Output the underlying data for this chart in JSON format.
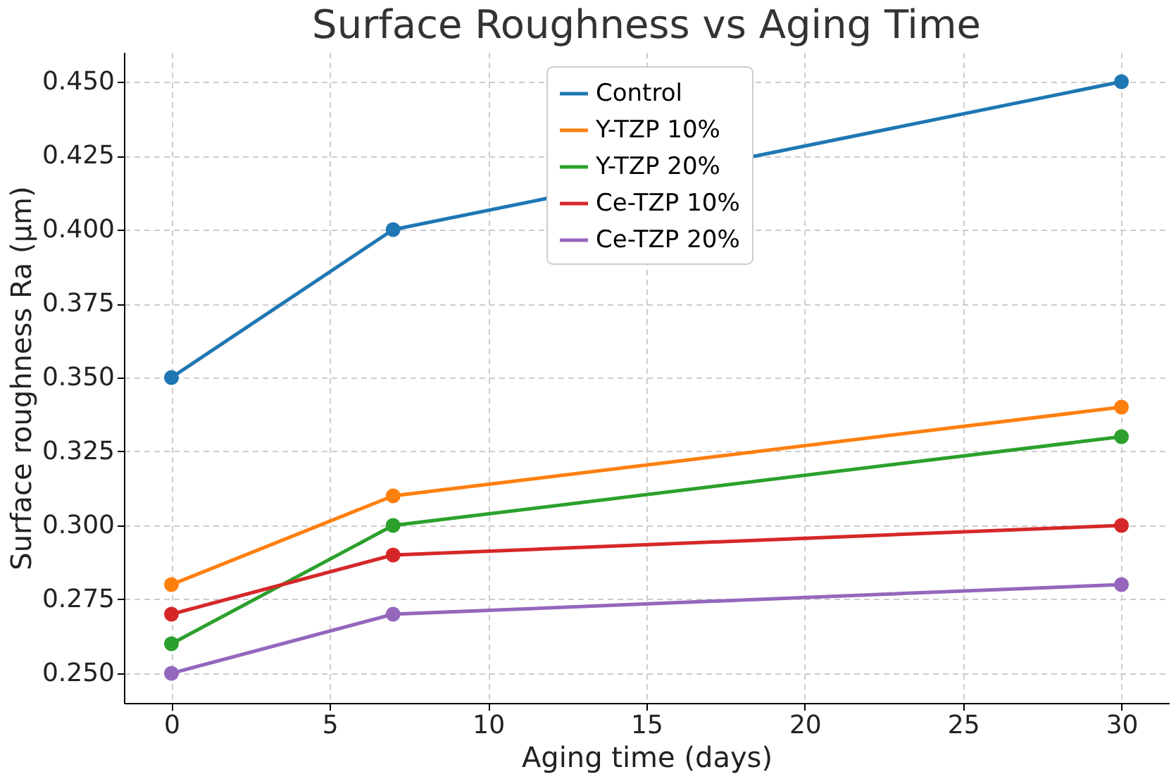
{
  "chart_data": {
    "type": "line",
    "title": "Surface Roughness vs Aging Time",
    "xlabel": "Aging time (days)",
    "ylabel": "Surface roughness Ra (µm)",
    "x": [
      0,
      7,
      30
    ],
    "series": [
      {
        "name": "Control",
        "color": "#1f77b4",
        "values": [
          0.35,
          0.4,
          0.45
        ]
      },
      {
        "name": "Y-TZP 10%",
        "color": "#ff7f0e",
        "values": [
          0.28,
          0.31,
          0.34
        ]
      },
      {
        "name": "Y-TZP 20%",
        "color": "#2ca02c",
        "values": [
          0.26,
          0.3,
          0.33
        ]
      },
      {
        "name": "Ce-TZP 10%",
        "color": "#d62728",
        "values": [
          0.27,
          0.29,
          0.3
        ]
      },
      {
        "name": "Ce-TZP 20%",
        "color": "#9467bd",
        "values": [
          0.25,
          0.27,
          0.28
        ]
      }
    ],
    "xlim": [
      -1.5,
      31.5
    ],
    "xticks": [
      0,
      5,
      10,
      15,
      20,
      25,
      30
    ],
    "ylim": [
      0.24,
      0.46
    ],
    "yticks": [
      {
        "value": 0.25,
        "label": "0.250"
      },
      {
        "value": 0.275,
        "label": "0.275"
      },
      {
        "value": 0.3,
        "label": "0.300"
      },
      {
        "value": 0.325,
        "label": "0.325"
      },
      {
        "value": 0.35,
        "label": "0.350"
      },
      {
        "value": 0.375,
        "label": "0.375"
      },
      {
        "value": 0.4,
        "label": "0.400"
      },
      {
        "value": 0.425,
        "label": "0.425"
      },
      {
        "value": 0.45,
        "label": "0.450"
      }
    ],
    "grid": true,
    "legend": "top",
    "marker": "circle",
    "line_style": "solid"
  }
}
